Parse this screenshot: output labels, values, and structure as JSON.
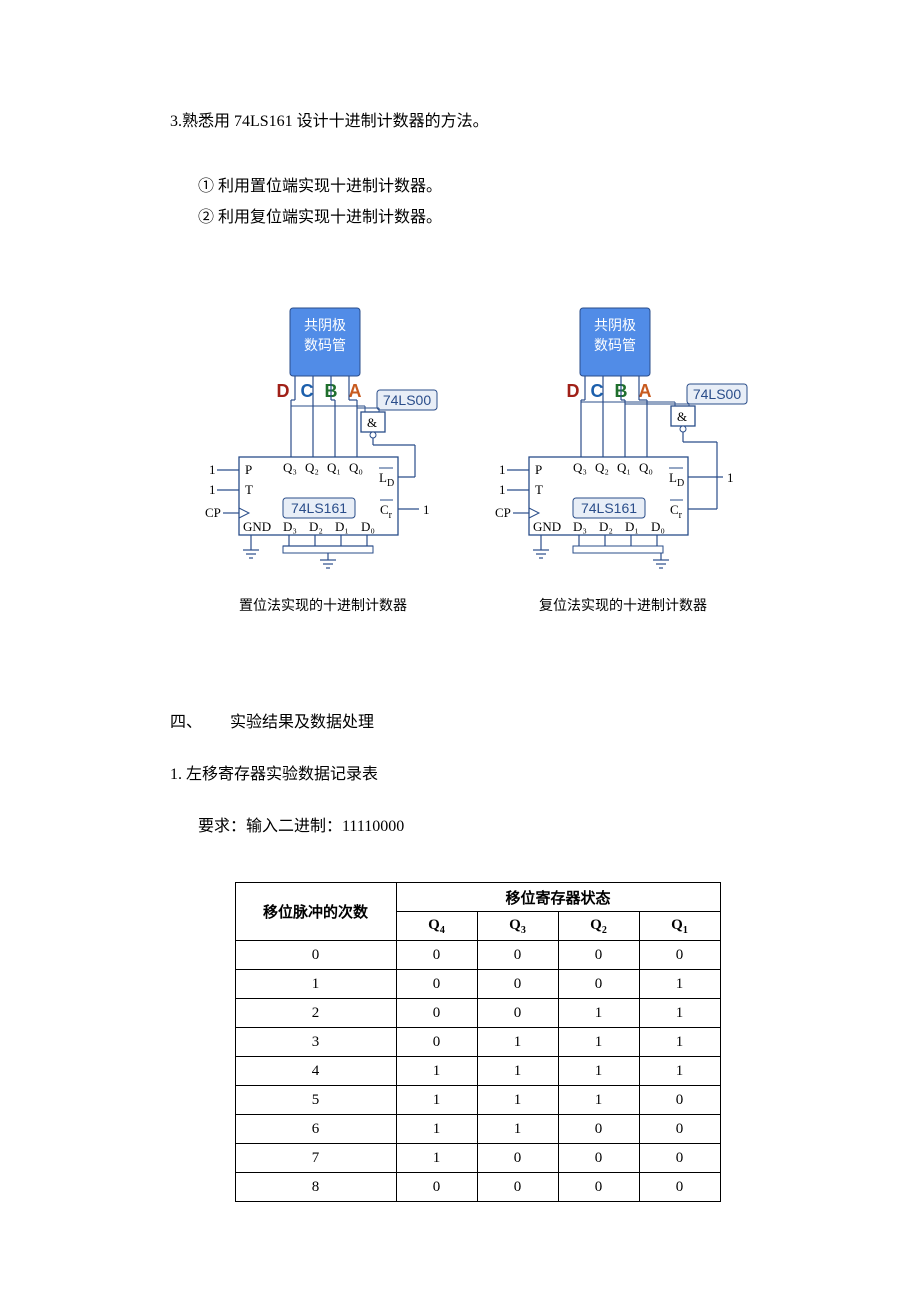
{
  "intro": {
    "line1": "3.熟悉用 74LS161 设计十进制计数器的方法。",
    "item1": "① 利用置位端实现十进制计数器。",
    "item2": "② 利用复位端实现十进制计数器。"
  },
  "diagram": {
    "seg_line1": "共阴极",
    "seg_line2": "数码管",
    "dcba": [
      "D",
      "C",
      "B",
      "A"
    ],
    "chip_74ls00": "74LS00",
    "chip_74ls161": "74LS161",
    "and_sym": "&",
    "pin_P": "P",
    "pin_T": "T",
    "pin_CP": "CP",
    "pin_GND": "GND",
    "pin_1": "1",
    "pin_Q3": "Q₃",
    "pin_Q2": "Q₂",
    "pin_Q1": "Q₁",
    "pin_Q0": "Q₀",
    "pin_LD": "L",
    "pin_LD_sub": "D",
    "pin_Cr": "C",
    "pin_Cr_sub": "r",
    "pin_D3": "D₃",
    "pin_D2": "D₂",
    "pin_D1": "D₁",
    "pin_D0": "D₀",
    "caption_left": "置位法实现的十进制计数器",
    "caption_right": "复位法实现的十进制计数器",
    "colors": {
      "seg_fill": "#518ce7",
      "seg_stroke": "#2a4d8a",
      "wire": "#2a4d8a",
      "dcba_D": "#a02018",
      "dcba_C": "#1c5fac",
      "dcba_B": "#1f6f2c",
      "dcba_A": "#c85a1e"
    }
  },
  "section4": {
    "num": "四、",
    "title": "实验结果及数据处理"
  },
  "sub1": "1.  左移寄存器实验数据记录表",
  "requirement": "要求：输入二进制：11110000",
  "table": {
    "col_pulse": "移位脉冲的次数",
    "col_group": "移位寄存器状态",
    "q_headers": [
      "Q",
      "Q",
      "Q",
      "Q"
    ],
    "q_subs": [
      "4",
      "3",
      "2",
      "1"
    ],
    "rows": [
      {
        "n": "0",
        "q": [
          "0",
          "0",
          "0",
          "0"
        ]
      },
      {
        "n": "1",
        "q": [
          "0",
          "0",
          "0",
          "1"
        ]
      },
      {
        "n": "2",
        "q": [
          "0",
          "0",
          "1",
          "1"
        ]
      },
      {
        "n": "3",
        "q": [
          "0",
          "1",
          "1",
          "1"
        ]
      },
      {
        "n": "4",
        "q": [
          "1",
          "1",
          "1",
          "1"
        ]
      },
      {
        "n": "5",
        "q": [
          "1",
          "1",
          "1",
          "0"
        ]
      },
      {
        "n": "6",
        "q": [
          "1",
          "1",
          "0",
          "0"
        ]
      },
      {
        "n": "7",
        "q": [
          "1",
          "0",
          "0",
          "0"
        ]
      },
      {
        "n": "8",
        "q": [
          "0",
          "0",
          "0",
          "0"
        ]
      }
    ]
  }
}
